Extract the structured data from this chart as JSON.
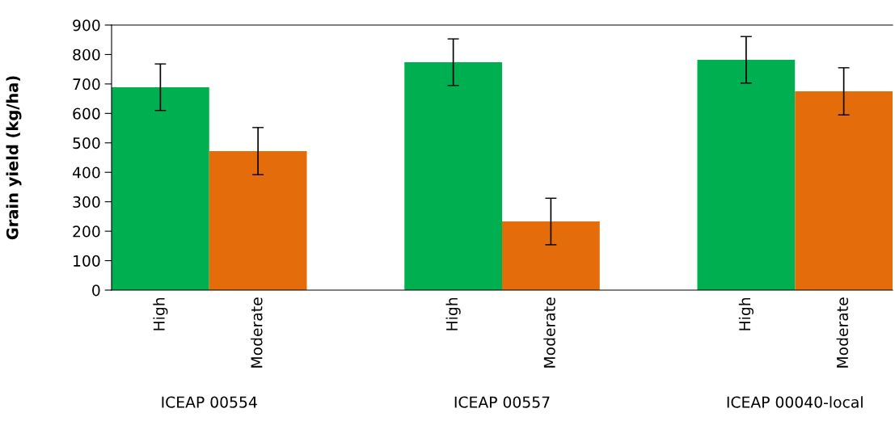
{
  "chart_data": {
    "type": "bar",
    "ylabel": "Grain yield (kg/ha)",
    "categories": [
      "High",
      "Moderate",
      null,
      "High",
      "Moderate",
      null,
      "High",
      "Moderate"
    ],
    "values": [
      689,
      472,
      null,
      774,
      233,
      null,
      782,
      675
    ],
    "errors": [
      79,
      80,
      null,
      79,
      79,
      null,
      79,
      80
    ],
    "colors": [
      "#00b050",
      "#e46c0a",
      null,
      "#00b050",
      "#e46c0a",
      null,
      "#00b050",
      "#e46c0a"
    ],
    "annotations": [
      "ICEAP 00554",
      "ICEAP 00557",
      "ICEAP 00040-local"
    ],
    "ylim": [
      0,
      900
    ],
    "yticks": [
      0,
      100,
      200,
      300,
      400,
      500,
      600,
      700,
      800,
      900
    ],
    "grid": false
  }
}
